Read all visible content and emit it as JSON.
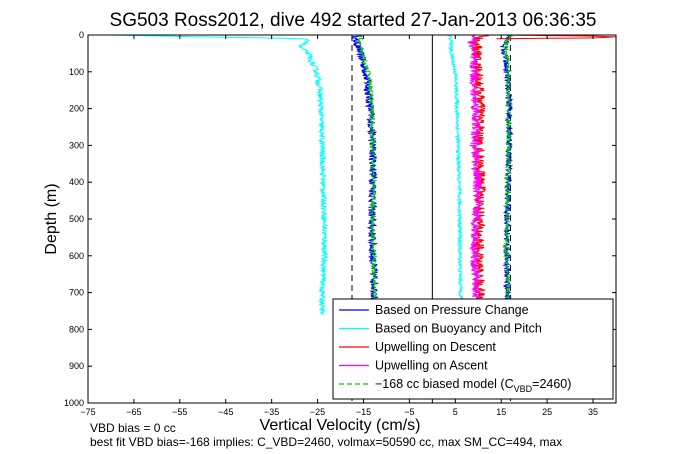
{
  "chart_data": {
    "type": "line",
    "title": "SG503 Ross2012, dive 492 started 27-Jan-2013 06:36:35",
    "xlabel": "Vertical Velocity (cm/s)",
    "ylabel": "Depth (m)",
    "xlim": [
      -75,
      40
    ],
    "ylim": [
      0,
      1000
    ],
    "y_reversed": true,
    "grid": false,
    "legend_position": "bottom-right",
    "x_ticks": [
      -75,
      -65,
      -55,
      -45,
      -35,
      -25,
      -15,
      -5,
      5,
      15,
      25,
      35
    ],
    "x_tick_labels": [
      "−75",
      "−65",
      "−55",
      "−45",
      "−35",
      "−25",
      "−15",
      "−5",
      "5",
      "15",
      "25",
      "35"
    ],
    "y_ticks": [
      0,
      100,
      200,
      300,
      400,
      500,
      600,
      700,
      800,
      900,
      1000
    ],
    "y_tick_labels": [
      "0",
      "100",
      "200",
      "300",
      "400",
      "500",
      "600",
      "700",
      "800",
      "900",
      "1000"
    ],
    "legend": [
      {
        "label": "Based on Pressure Change",
        "color": "#0000ff",
        "dash": "solid"
      },
      {
        "label": "Based on Buoyancy and Pitch",
        "color": "#00ffff",
        "dash": "solid"
      },
      {
        "label": "Upwelling on Descent",
        "color": "#ff0000",
        "dash": "solid"
      },
      {
        "label": "Upwelling on Ascent",
        "color": "#ff00ff",
        "dash": "solid"
      },
      {
        "label": "−168 cc biased model (C",
        "sub": "VBD",
        "suffix": "=2460)",
        "color": "#00cc00",
        "dash": "dashed"
      }
    ],
    "reference_lines": [
      {
        "x": -17.5,
        "style": "dashed",
        "color": "#000000"
      },
      {
        "x": 0,
        "style": "solid",
        "color": "#000000"
      },
      {
        "x": 17,
        "style": "dashed",
        "color": "#000000"
      }
    ],
    "series": [
      {
        "name": "Based on Pressure Change",
        "color": "#0000ff",
        "noise": 0.9,
        "depth": [
          0,
          10,
          20,
          40,
          60,
          80,
          100,
          150,
          200,
          300,
          400,
          500,
          600,
          700,
          760
        ],
        "values": [
          -16,
          -17,
          -16.5,
          -16,
          -15.5,
          -15,
          -14.5,
          -14,
          -13.5,
          -13,
          -12.8,
          -13.2,
          -13,
          -12.5,
          -12.8
        ]
      },
      {
        "name": "Based on Pressure Change",
        "color": "#0000ff",
        "noise": 0.7,
        "depth": [
          0,
          10,
          20,
          40,
          60,
          80,
          100,
          150,
          200,
          300,
          400,
          500,
          600,
          700,
          760
        ],
        "values": [
          17,
          16.5,
          16,
          15.5,
          15.8,
          16,
          16.2,
          16.5,
          16.8,
          16.8,
          16.5,
          16.3,
          16.2,
          16.4,
          16.5
        ]
      },
      {
        "name": "Based on Buoyancy and Pitch",
        "color": "#00ffff",
        "noise": 0.6,
        "depth": [
          0,
          10,
          20,
          30,
          50,
          70,
          90,
          110,
          150,
          200,
          300,
          400,
          500,
          600,
          700,
          760
        ],
        "values": [
          -70,
          -28,
          -27,
          -29,
          -27,
          -26.5,
          -25.5,
          -25,
          -24.5,
          -24.3,
          -24,
          -23.8,
          -23.5,
          -23.5,
          -24,
          -24
        ]
      },
      {
        "name": "Based on Buoyancy and Pitch",
        "color": "#00ffff",
        "noise": 0.4,
        "depth": [
          0,
          10,
          20,
          40,
          60,
          80,
          100,
          200,
          300,
          400,
          500,
          600,
          700,
          760
        ],
        "values": [
          3.5,
          4,
          4.2,
          4,
          4.3,
          4.6,
          5,
          5.4,
          5.6,
          5.8,
          6,
          6,
          6.2,
          6.4
        ]
      },
      {
        "name": "Upwelling on Descent",
        "color": "#ff0000",
        "noise": 1.2,
        "depth": [
          0,
          10,
          20,
          40,
          60,
          80,
          100,
          150,
          200,
          300,
          400,
          500,
          600,
          700,
          760
        ],
        "values": [
          12,
          10,
          9,
          10,
          9.5,
          9.8,
          10,
          10.2,
          10.5,
          10,
          10.5,
          10.2,
          10,
          10.3,
          10
        ]
      },
      {
        "name": "Upwelling on Ascent",
        "color": "#ff00ff",
        "noise": 1.0,
        "depth": [
          0,
          10,
          20,
          40,
          60,
          80,
          100,
          150,
          200,
          300,
          400,
          500,
          600,
          700,
          760
        ],
        "values": [
          9,
          9.5,
          8.5,
          9,
          8.8,
          9,
          9.2,
          9,
          9.5,
          9.3,
          9.8,
          9.5,
          9.2,
          9.6,
          9.4
        ]
      },
      {
        "name": "−168 cc biased model (CVBD=2460)",
        "color": "#00cc00",
        "dashed": true,
        "noise": 0.5,
        "depth": [
          0,
          10,
          20,
          40,
          60,
          80,
          100,
          150,
          200,
          300,
          400,
          500,
          600,
          700,
          760
        ],
        "values": [
          -16,
          -15.5,
          -16,
          -15.5,
          -15,
          -14.5,
          -14,
          -13.5,
          -13.2,
          -13,
          -12.8,
          -13,
          -12.8,
          -12.5,
          -12.7
        ]
      },
      {
        "name": "−168 cc biased model (CVBD=2460)",
        "color": "#00cc00",
        "dashed": true,
        "noise": 0.5,
        "depth": [
          0,
          10,
          20,
          40,
          60,
          80,
          100,
          150,
          200,
          300,
          400,
          500,
          600,
          700,
          760
        ],
        "values": [
          17,
          16.5,
          16.3,
          16,
          16.2,
          16.3,
          16.5,
          16.5,
          16.6,
          16.6,
          16.4,
          16.3,
          16.2,
          16.4,
          16.4
        ]
      },
      {
        "name": "Surface spike",
        "color": "#ff0000",
        "noise": 0,
        "depth": [
          0,
          3,
          5,
          8,
          10
        ],
        "values": [
          16,
          35,
          40,
          35,
          14
        ]
      }
    ]
  },
  "footer": {
    "line1": "VBD bias = 0 cc",
    "line2": "best fit VBD bias=-168 implies: C_VBD=2460, volmax=50590 cc, max SM_CC=494, max"
  }
}
